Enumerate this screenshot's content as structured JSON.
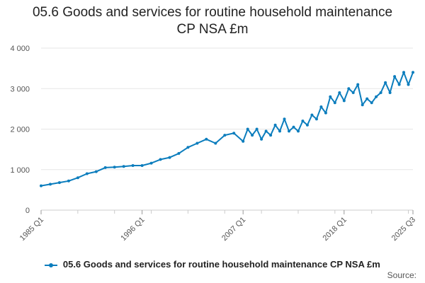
{
  "title_line1": "05.6 Goods and services for routine household maintenance",
  "title_line2": "CP NSA £m",
  "credits": "Source:",
  "colors": {
    "series": "#0b7dbd",
    "grid": "#e6e6e6",
    "axis": "#cccccc"
  },
  "chart_data": {
    "type": "line",
    "title": "05.6 Goods and services for routine household maintenance CP NSA £m",
    "xlabel": "",
    "ylabel": "",
    "ylim": [
      0,
      4000
    ],
    "y_ticks": [
      0,
      1000,
      2000,
      3000,
      4000
    ],
    "y_tick_labels": [
      "0",
      "1 000",
      "2 000",
      "3 000",
      "4 000"
    ],
    "x_tick_labels": [
      "1985 Q1",
      "1996 Q1",
      "2007 Q1",
      "2018 Q1",
      "2025 Q3"
    ],
    "grid": true,
    "legend_position": "bottom",
    "series": [
      {
        "name": "05.6 Goods and services for routine household maintenance CP NSA £m",
        "x": [
          "1985 Q1",
          "1986 Q1",
          "1987 Q1",
          "1988 Q1",
          "1989 Q1",
          "1990 Q1",
          "1991 Q1",
          "1992 Q1",
          "1993 Q1",
          "1994 Q1",
          "1995 Q1",
          "1996 Q1",
          "1997 Q1",
          "1998 Q1",
          "1999 Q1",
          "2000 Q1",
          "2001 Q1",
          "2002 Q1",
          "2003 Q1",
          "2004 Q1",
          "2005 Q1",
          "2006 Q1",
          "2007 Q1",
          "2007 Q3",
          "2008 Q1",
          "2008 Q3",
          "2009 Q1",
          "2009 Q3",
          "2010 Q1",
          "2010 Q3",
          "2011 Q1",
          "2011 Q3",
          "2012 Q1",
          "2012 Q3",
          "2013 Q1",
          "2013 Q3",
          "2014 Q1",
          "2014 Q3",
          "2015 Q1",
          "2015 Q3",
          "2016 Q1",
          "2016 Q3",
          "2017 Q1",
          "2017 Q3",
          "2018 Q1",
          "2018 Q3",
          "2019 Q1",
          "2019 Q3",
          "2020 Q1",
          "2020 Q3",
          "2021 Q1",
          "2021 Q3",
          "2022 Q1",
          "2022 Q3",
          "2023 Q1",
          "2023 Q3",
          "2024 Q1",
          "2024 Q3",
          "2025 Q1",
          "2025 Q3"
        ],
        "values": [
          600,
          640,
          680,
          720,
          800,
          900,
          950,
          1050,
          1060,
          1080,
          1100,
          1100,
          1160,
          1250,
          1300,
          1400,
          1550,
          1650,
          1750,
          1650,
          1850,
          1900,
          1700,
          2000,
          1850,
          2000,
          1750,
          1950,
          1850,
          2100,
          1950,
          2250,
          1950,
          2050,
          1950,
          2200,
          2100,
          2350,
          2250,
          2550,
          2400,
          2800,
          2650,
          2900,
          2700,
          3000,
          2900,
          3100,
          2600,
          2750,
          2650,
          2800,
          2900,
          3150,
          2900,
          3300,
          3100,
          3400,
          3100,
          3400
        ]
      }
    ]
  }
}
